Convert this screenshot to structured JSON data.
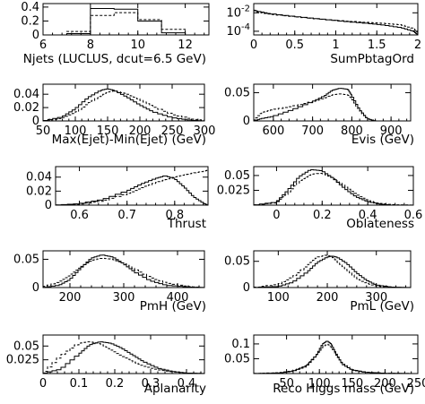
{
  "chart_data": [
    {
      "id": "p1",
      "type": "histogram",
      "xlabel": "Njets (LUCLUS, dcut=6.5 GeV)",
      "xlim": [
        6,
        13
      ],
      "ylim": [
        0,
        0.45
      ],
      "xticks": [
        6,
        8,
        10,
        12
      ],
      "yticks": [
        {
          "v": 0,
          "t": "0"
        },
        {
          "v": 0.2,
          "t": "0.2"
        },
        {
          "v": 0.4,
          "t": "0.4"
        }
      ],
      "bin_edges": [
        6,
        7,
        8,
        9,
        10,
        11,
        12,
        13
      ],
      "series": [
        {
          "style": "solid",
          "values": [
            0,
            0.02,
            0.38,
            0.37,
            0.2,
            0.03,
            0
          ]
        },
        {
          "style": "dashed",
          "values": [
            0,
            0.05,
            0.28,
            0.32,
            0.22,
            0.08,
            0
          ]
        }
      ]
    },
    {
      "id": "p2",
      "type": "histogram",
      "log": true,
      "xlabel": "SumPbtagOrd",
      "xlim": [
        0,
        2
      ],
      "ylim": [
        4e-05,
        0.1
      ],
      "xticks": [
        0,
        0.5,
        1,
        1.5,
        2
      ],
      "yticks": [
        {
          "v": 0.01,
          "t": "10-2",
          "exp": "-2"
        },
        {
          "v": 0.0001,
          "t": "10-4",
          "exp": "-4"
        }
      ],
      "series": [
        {
          "style": "solid",
          "x": [
            0,
            0.05,
            0.2,
            0.5,
            0.8,
            1.1,
            1.4,
            1.6,
            1.8,
            1.95,
            2.0
          ],
          "values": [
            0.02,
            0.015,
            0.008,
            0.004,
            0.0022,
            0.0012,
            0.0007,
            0.00045,
            0.00025,
            0.0001,
            4e-05
          ]
        },
        {
          "style": "dashed",
          "x": [
            0,
            0.05,
            0.2,
            0.5,
            0.8,
            1.1,
            1.4,
            1.6,
            1.8,
            1.95,
            2.0
          ],
          "values": [
            0.02,
            0.012,
            0.007,
            0.0038,
            0.0021,
            0.0013,
            0.0009,
            0.0007,
            0.0005,
            0.0002,
            7e-05
          ]
        }
      ]
    },
    {
      "id": "p3",
      "type": "histogram",
      "xlabel": "Max(Ejet)-Min(Ejet) (GeV)",
      "xlim": [
        50,
        300
      ],
      "ylim": [
        0,
        0.055
      ],
      "xticks": [
        50,
        100,
        150,
        200,
        250,
        300
      ],
      "yticks": [
        {
          "v": 0,
          "t": "0"
        },
        {
          "v": 0.02,
          "t": "0.02"
        },
        {
          "v": 0.04,
          "t": "0.04"
        }
      ],
      "series": [
        {
          "style": "solid",
          "x": [
            50,
            80,
            100,
            120,
            140,
            150,
            160,
            180,
            200,
            220,
            250,
            280,
            300
          ],
          "values": [
            0,
            0.006,
            0.018,
            0.035,
            0.046,
            0.048,
            0.046,
            0.036,
            0.024,
            0.014,
            0.005,
            0.001,
            0
          ]
        },
        {
          "style": "dashed",
          "x": [
            50,
            80,
            100,
            120,
            140,
            150,
            160,
            180,
            200,
            220,
            250,
            280,
            300
          ],
          "values": [
            0,
            0.004,
            0.012,
            0.026,
            0.038,
            0.043,
            0.045,
            0.041,
            0.032,
            0.022,
            0.01,
            0.003,
            0.001
          ]
        }
      ]
    },
    {
      "id": "p4",
      "type": "histogram",
      "xlabel": "Evis (GeV)",
      "xlim": [
        550,
        950
      ],
      "ylim": [
        0,
        0.065
      ],
      "xticks": [
        600,
        700,
        800,
        900
      ],
      "yticks": [
        {
          "v": 0,
          "t": "0"
        },
        {
          "v": 0.05,
          "t": "0.05"
        }
      ],
      "series": [
        {
          "style": "solid",
          "x": [
            550,
            570,
            600,
            650,
            700,
            730,
            750,
            770,
            790,
            800,
            820,
            840,
            860,
            950
          ],
          "values": [
            0,
            0.004,
            0.008,
            0.02,
            0.034,
            0.044,
            0.054,
            0.058,
            0.056,
            0.045,
            0.02,
            0.004,
            0,
            0
          ]
        },
        {
          "style": "dashed",
          "x": [
            550,
            570,
            600,
            650,
            700,
            730,
            750,
            770,
            790,
            800,
            820,
            840,
            860,
            950
          ],
          "values": [
            0,
            0.015,
            0.02,
            0.026,
            0.034,
            0.04,
            0.046,
            0.048,
            0.046,
            0.04,
            0.018,
            0.004,
            0,
            0
          ]
        }
      ]
    },
    {
      "id": "p5",
      "type": "histogram",
      "xlabel": "Thrust",
      "xlim": [
        0.55,
        0.87
      ],
      "ylim": [
        0,
        0.055
      ],
      "xticks": [
        0.6,
        0.7,
        0.8
      ],
      "yticks": [
        {
          "v": 0,
          "t": "0"
        },
        {
          "v": 0.02,
          "t": "0.02"
        },
        {
          "v": 0.04,
          "t": "0.04"
        }
      ],
      "series": [
        {
          "style": "solid",
          "x": [
            0.55,
            0.6,
            0.65,
            0.7,
            0.73,
            0.76,
            0.78,
            0.8,
            0.82,
            0.84,
            0.86,
            0.87
          ],
          "values": [
            0,
            0.002,
            0.008,
            0.02,
            0.03,
            0.038,
            0.042,
            0.038,
            0.026,
            0.012,
            0.003,
            0
          ]
        },
        {
          "style": "dashed",
          "x": [
            0.55,
            0.6,
            0.65,
            0.7,
            0.73,
            0.76,
            0.78,
            0.8,
            0.82,
            0.84,
            0.86,
            0.87
          ],
          "values": [
            0,
            0.001,
            0.006,
            0.016,
            0.024,
            0.032,
            0.036,
            0.04,
            0.043,
            0.046,
            0.048,
            0.05
          ]
        }
      ]
    },
    {
      "id": "p6",
      "type": "histogram",
      "xlabel": "Oblateness",
      "xlim": [
        -0.1,
        0.6
      ],
      "ylim": [
        0,
        0.065
      ],
      "xticks": [
        0,
        0.2,
        0.4,
        0.6
      ],
      "yticks": [
        {
          "v": 0.025,
          "t": "0.025"
        },
        {
          "v": 0.05,
          "t": "0.05"
        }
      ],
      "series": [
        {
          "style": "solid",
          "x": [
            -0.1,
            0,
            0.05,
            0.1,
            0.15,
            0.2,
            0.25,
            0.3,
            0.35,
            0.4,
            0.45,
            0.5,
            0.6
          ],
          "values": [
            0,
            0.005,
            0.025,
            0.048,
            0.06,
            0.058,
            0.045,
            0.028,
            0.014,
            0.006,
            0.002,
            0,
            0
          ]
        },
        {
          "style": "dashed",
          "x": [
            -0.1,
            0,
            0.05,
            0.1,
            0.15,
            0.2,
            0.25,
            0.3,
            0.35,
            0.4,
            0.45,
            0.5,
            0.6
          ],
          "values": [
            0,
            0.004,
            0.02,
            0.04,
            0.052,
            0.054,
            0.046,
            0.032,
            0.018,
            0.008,
            0.003,
            0.001,
            0
          ]
        }
      ]
    },
    {
      "id": "p7",
      "type": "histogram",
      "xlabel": "PmH (GeV)",
      "xlim": [
        150,
        450
      ],
      "ylim": [
        0,
        0.065
      ],
      "xticks": [
        200,
        300,
        400
      ],
      "yticks": [
        {
          "v": 0,
          "t": "0"
        },
        {
          "v": 0.05,
          "t": "0.05"
        }
      ],
      "series": [
        {
          "style": "solid",
          "x": [
            150,
            180,
            200,
            220,
            240,
            260,
            280,
            300,
            320,
            350,
            380,
            420,
            450
          ],
          "values": [
            0,
            0.004,
            0.014,
            0.034,
            0.052,
            0.058,
            0.054,
            0.042,
            0.028,
            0.012,
            0.004,
            0.001,
            0
          ]
        },
        {
          "style": "dashed",
          "x": [
            150,
            180,
            200,
            220,
            240,
            260,
            280,
            300,
            320,
            350,
            380,
            420,
            450
          ],
          "values": [
            0.001,
            0.01,
            0.022,
            0.036,
            0.048,
            0.052,
            0.05,
            0.043,
            0.033,
            0.018,
            0.008,
            0.002,
            0
          ]
        }
      ]
    },
    {
      "id": "p8",
      "type": "histogram",
      "xlabel": "PmL (GeV)",
      "xlim": [
        50,
        370
      ],
      "ylim": [
        0,
        0.07
      ],
      "xticks": [
        100,
        200,
        300
      ],
      "yticks": [
        {
          "v": 0,
          "t": "0"
        },
        {
          "v": 0.05,
          "t": "0.05"
        }
      ],
      "series": [
        {
          "style": "solid",
          "x": [
            50,
            100,
            130,
            160,
            180,
            200,
            210,
            220,
            240,
            260,
            280,
            300,
            330,
            370
          ],
          "values": [
            0,
            0.002,
            0.01,
            0.03,
            0.048,
            0.058,
            0.06,
            0.058,
            0.046,
            0.028,
            0.014,
            0.005,
            0.001,
            0
          ]
        },
        {
          "style": "dashed",
          "x": [
            50,
            100,
            130,
            160,
            180,
            200,
            210,
            220,
            240,
            260,
            280,
            300,
            330,
            370
          ],
          "values": [
            0,
            0.006,
            0.02,
            0.042,
            0.058,
            0.062,
            0.058,
            0.05,
            0.034,
            0.018,
            0.008,
            0.003,
            0,
            0
          ]
        }
      ]
    },
    {
      "id": "p9",
      "type": "histogram",
      "xlabel": "Aplanarity",
      "xlim": [
        0,
        0.45
      ],
      "ylim": [
        0,
        0.07
      ],
      "xticks": [
        0,
        0.1,
        0.2,
        0.3,
        0.4
      ],
      "yticks": [
        {
          "v": 0.025,
          "t": "0.025"
        },
        {
          "v": 0.05,
          "t": "0.05"
        }
      ],
      "series": [
        {
          "style": "solid",
          "x": [
            0,
            0.05,
            0.1,
            0.13,
            0.16,
            0.19,
            0.22,
            0.25,
            0.28,
            0.32,
            0.36,
            0.4,
            0.45
          ],
          "values": [
            0,
            0.008,
            0.035,
            0.052,
            0.058,
            0.055,
            0.046,
            0.034,
            0.022,
            0.01,
            0.004,
            0.001,
            0
          ]
        },
        {
          "style": "dashed",
          "x": [
            0,
            0.05,
            0.1,
            0.13,
            0.16,
            0.19,
            0.22,
            0.25,
            0.28,
            0.32,
            0.36,
            0.4,
            0.45
          ],
          "values": [
            0,
            0.032,
            0.055,
            0.058,
            0.054,
            0.044,
            0.032,
            0.022,
            0.014,
            0.007,
            0.003,
            0.001,
            0
          ]
        }
      ]
    },
    {
      "id": "p10",
      "type": "histogram",
      "xlabel": "Reco Higgs mass (GeV)",
      "xlim": [
        0,
        250
      ],
      "ylim": [
        0,
        0.13
      ],
      "xticks": [
        50,
        100,
        150,
        200,
        250
      ],
      "yticks": [
        {
          "v": 0.05,
          "t": "0.05"
        },
        {
          "v": 0.1,
          "t": "0.1"
        }
      ],
      "series": [
        {
          "style": "solid",
          "x": [
            0,
            40,
            60,
            80,
            95,
            105,
            112,
            118,
            125,
            135,
            150,
            170,
            200,
            250
          ],
          "values": [
            0,
            0.002,
            0.008,
            0.024,
            0.06,
            0.1,
            0.11,
            0.1,
            0.07,
            0.032,
            0.012,
            0.004,
            0.001,
            0
          ]
        },
        {
          "style": "dashed",
          "x": [
            0,
            40,
            60,
            80,
            95,
            105,
            112,
            118,
            125,
            135,
            150,
            170,
            200,
            250
          ],
          "values": [
            0,
            0.003,
            0.01,
            0.028,
            0.06,
            0.09,
            0.1,
            0.09,
            0.066,
            0.034,
            0.014,
            0.005,
            0.001,
            0
          ]
        }
      ]
    }
  ]
}
